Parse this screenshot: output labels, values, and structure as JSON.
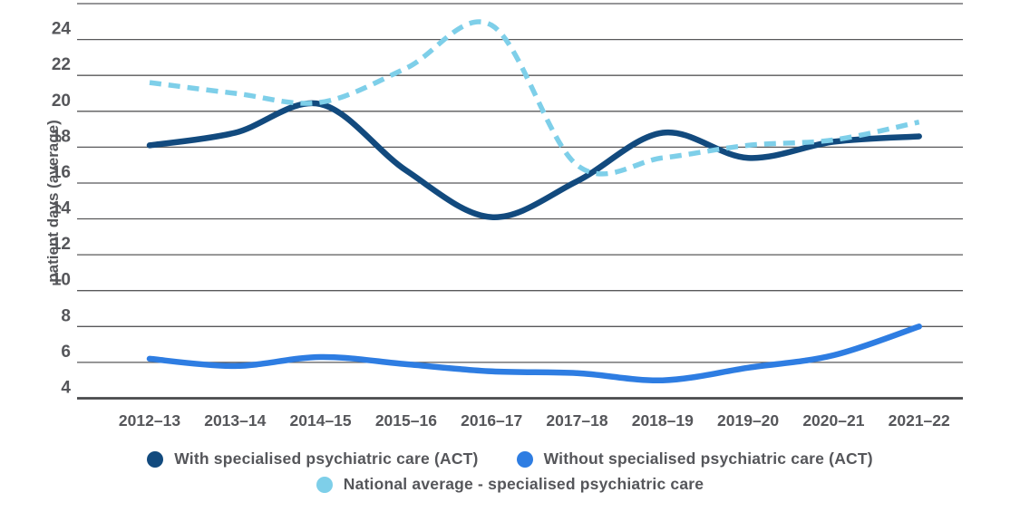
{
  "chart_data": {
    "type": "line",
    "title": "",
    "xlabel": "",
    "ylabel": "patient days (average)",
    "categories": [
      "2012–13",
      "2013–14",
      "2014–15",
      "2015–16",
      "2016–17",
      "2017–18",
      "2018–19",
      "2019–20",
      "2020–21",
      "2021–22"
    ],
    "y_ticks": [
      4,
      6,
      8,
      10,
      12,
      14,
      16,
      18,
      20,
      22,
      24
    ],
    "ylim": [
      4,
      26
    ],
    "grid": true,
    "legend_position": "bottom",
    "series": [
      {
        "name": "With specialised psychiatric care (ACT)",
        "color": "#124A7E",
        "style": "solid",
        "values": [
          18.1,
          18.8,
          20.4,
          16.7,
          14.1,
          16.1,
          18.8,
          17.4,
          18.3,
          18.6
        ]
      },
      {
        "name": "Without specialised psychiatric care (ACT)",
        "color": "#2E7DE2",
        "style": "solid",
        "values": [
          6.2,
          5.8,
          6.3,
          5.9,
          5.5,
          5.4,
          5.0,
          5.7,
          6.4,
          8.0
        ]
      },
      {
        "name": "National average - specialised psychiatric care",
        "color": "#7ECFE9",
        "style": "dashed",
        "values": [
          21.6,
          21.0,
          20.5,
          22.4,
          24.8,
          17.0,
          17.4,
          18.1,
          18.4,
          19.4
        ]
      }
    ],
    "colors": {
      "grid": "#58585A",
      "axis": "#48494B",
      "text": "#55565A"
    }
  },
  "legend": {
    "items": [
      {
        "label": "With specialised psychiatric care (ACT)"
      },
      {
        "label": "Without specialised psychiatric care (ACT)"
      },
      {
        "label": "National average - specialised psychiatric care"
      }
    ]
  }
}
